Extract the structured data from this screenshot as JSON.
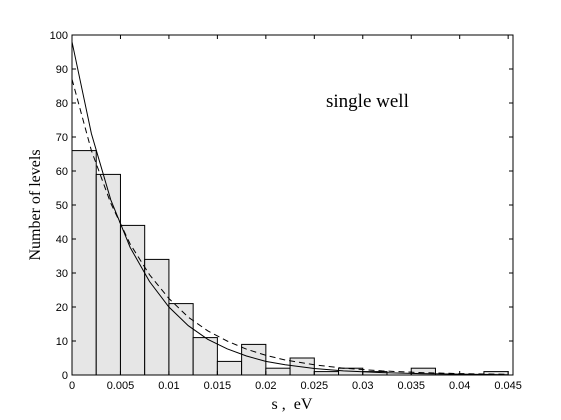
{
  "chart_data": {
    "type": "bar",
    "title": "",
    "xlabel": "s ,  eV",
    "ylabel": "Number of levels",
    "annotation": "single well",
    "xlim": [
      0,
      0.0455
    ],
    "ylim": [
      0,
      100
    ],
    "grid": false,
    "legend": "none",
    "x_ticks": [
      0,
      0.005,
      0.01,
      0.015,
      0.02,
      0.025,
      0.03,
      0.035,
      0.04,
      0.045
    ],
    "x_tick_labels": [
      "0",
      "0.005",
      "0.01",
      "0.015",
      "0.02",
      "0.025",
      "0.03",
      "0.035",
      "0.04",
      "0.045"
    ],
    "y_ticks": [
      0,
      10,
      20,
      30,
      40,
      50,
      60,
      70,
      80,
      90,
      100
    ],
    "y_tick_labels": [
      "0",
      "10",
      "20",
      "30",
      "40",
      "50",
      "60",
      "70",
      "80",
      "90",
      "100"
    ],
    "bin_width": 0.0025,
    "bins": [
      {
        "x0": 0.0,
        "x1": 0.0025,
        "value": 66
      },
      {
        "x0": 0.0025,
        "x1": 0.005,
        "value": 59
      },
      {
        "x0": 0.005,
        "x1": 0.0075,
        "value": 44
      },
      {
        "x0": 0.0075,
        "x1": 0.01,
        "value": 34
      },
      {
        "x0": 0.01,
        "x1": 0.0125,
        "value": 21
      },
      {
        "x0": 0.0125,
        "x1": 0.015,
        "value": 11
      },
      {
        "x0": 0.015,
        "x1": 0.0175,
        "value": 4
      },
      {
        "x0": 0.0175,
        "x1": 0.02,
        "value": 9
      },
      {
        "x0": 0.02,
        "x1": 0.0225,
        "value": 2
      },
      {
        "x0": 0.0225,
        "x1": 0.025,
        "value": 5
      },
      {
        "x0": 0.025,
        "x1": 0.0275,
        "value": 1
      },
      {
        "x0": 0.0275,
        "x1": 0.03,
        "value": 2
      },
      {
        "x0": 0.03,
        "x1": 0.0325,
        "value": 1
      },
      {
        "x0": 0.0325,
        "x1": 0.035,
        "value": 0
      },
      {
        "x0": 0.035,
        "x1": 0.0375,
        "value": 2
      },
      {
        "x0": 0.0375,
        "x1": 0.04,
        "value": 0
      },
      {
        "x0": 0.04,
        "x1": 0.0425,
        "value": 0
      },
      {
        "x0": 0.0425,
        "x1": 0.045,
        "value": 1
      }
    ],
    "curves": [
      {
        "style": "solid",
        "x": [
          0,
          0.002,
          0.004,
          0.006,
          0.008,
          0.01,
          0.012,
          0.014,
          0.016,
          0.018,
          0.02,
          0.022,
          0.025,
          0.028,
          0.032,
          0.036,
          0.04,
          0.045
        ],
        "y": [
          98,
          71,
          51.5,
          37.5,
          27.5,
          20,
          14.5,
          10.5,
          7.7,
          5.6,
          4,
          3,
          1.9,
          1.2,
          0.7,
          0.4,
          0.25,
          0.1
        ]
      },
      {
        "style": "dashed",
        "x": [
          0,
          0.002,
          0.004,
          0.006,
          0.008,
          0.01,
          0.012,
          0.014,
          0.016,
          0.018,
          0.02,
          0.022,
          0.025,
          0.028,
          0.032,
          0.036,
          0.04,
          0.045
        ],
        "y": [
          87,
          66,
          50.5,
          38.5,
          29.5,
          22.5,
          17,
          13,
          10,
          7.6,
          5.8,
          4.4,
          3,
          2,
          1.2,
          0.7,
          0.4,
          0.2
        ]
      }
    ]
  }
}
